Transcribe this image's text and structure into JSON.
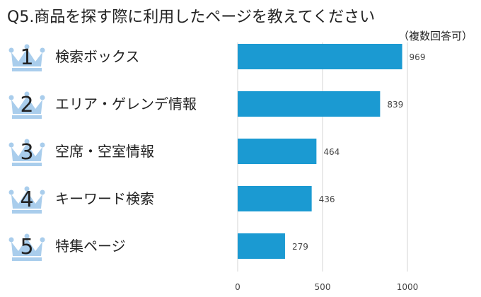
{
  "title": "Q5.商品を探す際に利用したページを教えてください",
  "note": "（複数回答可）",
  "colors": {
    "bar": "#1b9ad2",
    "crown": "#a9cdec",
    "grid": "#d4d4d4"
  },
  "chart_data": {
    "type": "bar",
    "orientation": "horizontal",
    "ranks": [
      "1",
      "2",
      "3",
      "4",
      "5"
    ],
    "categories": [
      "検索ボックス",
      "エリア・ゲレンデ情報",
      "空席・空室情報",
      "キーワード検索",
      "特集ページ"
    ],
    "values": [
      969,
      839,
      464,
      436,
      279
    ],
    "xlim": [
      0,
      1000
    ],
    "xticks": [
      0,
      500,
      1000
    ],
    "grid": true,
    "icon": "crown-icon"
  }
}
